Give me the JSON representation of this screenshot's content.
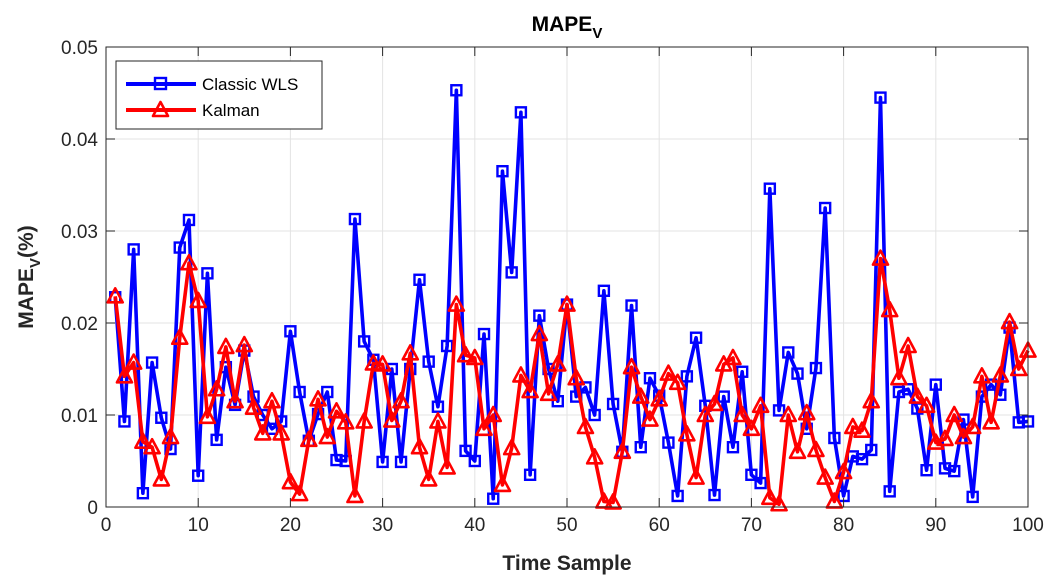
{
  "chart_data": {
    "type": "line",
    "title": "MAPE",
    "title_sub": "V",
    "xlabel": "Time Sample",
    "ylabel": "MAPE",
    "ylabel_sub": "V",
    "ylabel_suffix": "(%)",
    "xlim": [
      0,
      100
    ],
    "ylim": [
      0,
      0.05
    ],
    "xticks": [
      0,
      10,
      20,
      30,
      40,
      50,
      60,
      70,
      80,
      90,
      100
    ],
    "xtick_labels": [
      "0",
      "10",
      "20",
      "30",
      "40",
      "50",
      "60",
      "70",
      "80",
      "90",
      "100"
    ],
    "yticks": [
      0,
      0.01,
      0.02,
      0.03,
      0.04,
      0.05
    ],
    "ytick_labels": [
      "0",
      "0.01",
      "0.02",
      "0.03",
      "0.04",
      "0.05"
    ],
    "grid": true,
    "legend_position": "top-left",
    "x": [
      1,
      2,
      3,
      4,
      5,
      6,
      7,
      8,
      9,
      10,
      11,
      12,
      13,
      14,
      15,
      16,
      17,
      18,
      19,
      20,
      21,
      22,
      23,
      24,
      25,
      26,
      27,
      28,
      29,
      30,
      31,
      32,
      33,
      34,
      35,
      36,
      37,
      38,
      39,
      40,
      41,
      42,
      43,
      44,
      45,
      46,
      47,
      48,
      49,
      50,
      51,
      52,
      53,
      54,
      55,
      56,
      57,
      58,
      59,
      60,
      61,
      62,
      63,
      64,
      65,
      66,
      67,
      68,
      69,
      70,
      71,
      72,
      73,
      74,
      75,
      76,
      77,
      78,
      79,
      80,
      81,
      82,
      83,
      84,
      85,
      86,
      87,
      88,
      89,
      90,
      91,
      92,
      93,
      94,
      95,
      96,
      97,
      98,
      99,
      100
    ],
    "series": [
      {
        "name": "Classic WLS",
        "color": "#0000ff",
        "marker": "square",
        "values": [
          0.0228,
          0.0093,
          0.028,
          0.0015,
          0.0157,
          0.0097,
          0.0063,
          0.0282,
          0.0312,
          0.0034,
          0.0254,
          0.0073,
          0.0152,
          0.0111,
          0.017,
          0.012,
          0.01,
          0.0085,
          0.0093,
          0.0191,
          0.0125,
          0.0072,
          0.0101,
          0.0125,
          0.0051,
          0.005,
          0.0313,
          0.018,
          0.016,
          0.0049,
          0.015,
          0.0049,
          0.015,
          0.0247,
          0.0158,
          0.0109,
          0.0175,
          0.0453,
          0.0061,
          0.005,
          0.0188,
          0.0009,
          0.0365,
          0.0255,
          0.0429,
          0.0035,
          0.0208,
          0.015,
          0.0115,
          0.022,
          0.012,
          0.013,
          0.01,
          0.0235,
          0.0112,
          0.006,
          0.0219,
          0.0065,
          0.014,
          0.0121,
          0.007,
          0.0012,
          0.0142,
          0.0184,
          0.011,
          0.0013,
          0.012,
          0.0065,
          0.0147,
          0.0035,
          0.0026,
          0.0346,
          0.0105,
          0.0168,
          0.0145,
          0.0085,
          0.0151,
          0.0325,
          0.0075,
          0.0012,
          0.0055,
          0.0052,
          0.0062,
          0.0445,
          0.0017,
          0.0125,
          0.0128,
          0.0107,
          0.004,
          0.0133,
          0.0042,
          0.0039,
          0.0095,
          0.0011,
          0.012,
          0.0133,
          0.0122,
          0.0195,
          0.0092,
          0.0093
        ]
      },
      {
        "name": "Kalman",
        "color": "#ff0000",
        "marker": "triangle",
        "values": [
          0.0229,
          0.0142,
          0.0157,
          0.0071,
          0.0065,
          0.003,
          0.0076,
          0.0184,
          0.0265,
          0.0224,
          0.0098,
          0.0128,
          0.0174,
          0.0115,
          0.0176,
          0.0108,
          0.008,
          0.0115,
          0.008,
          0.0027,
          0.0014,
          0.0073,
          0.0117,
          0.0076,
          0.0104,
          0.0092,
          0.0012,
          0.0093,
          0.0156,
          0.0155,
          0.0094,
          0.0115,
          0.0167,
          0.0065,
          0.003,
          0.0093,
          0.0043,
          0.022,
          0.0165,
          0.0162,
          0.0085,
          0.01,
          0.0024,
          0.0064,
          0.0143,
          0.0126,
          0.0188,
          0.0123,
          0.0155,
          0.022,
          0.014,
          0.0087,
          0.0054,
          0.0006,
          0.0005,
          0.006,
          0.0152,
          0.012,
          0.0095,
          0.0117,
          0.0145,
          0.0135,
          0.0079,
          0.0032,
          0.01,
          0.0112,
          0.0155,
          0.0162,
          0.01,
          0.0085,
          0.011,
          0.001,
          0.0003,
          0.01,
          0.006,
          0.0102,
          0.0062,
          0.0032,
          0.0006,
          0.0038,
          0.0087,
          0.0083,
          0.0115,
          0.027,
          0.0214,
          0.014,
          0.0175,
          0.012,
          0.011,
          0.007,
          0.0074,
          0.01,
          0.0076,
          0.0087,
          0.0142,
          0.0092,
          0.0143,
          0.0201,
          0.015,
          0.017
        ]
      }
    ]
  }
}
